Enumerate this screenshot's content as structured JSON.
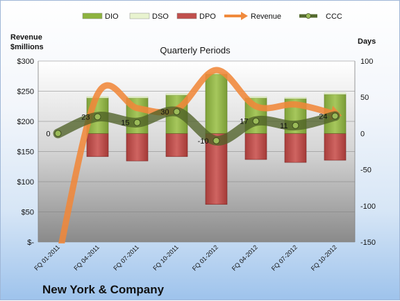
{
  "company": "New York & Company",
  "chart_data": {
    "type": "bar",
    "title": "Quarterly Periods",
    "left_axis_title_1": "Revenue",
    "left_axis_title_2": "$millions",
    "right_axis_title": "Days",
    "categories": [
      "FQ 01-2011",
      "FQ 04-2011",
      "FQ 07-2011",
      "FQ 10-2011",
      "FQ 01-2012",
      "FQ 04-2012",
      "FQ 07-2012",
      "FQ 10-2012"
    ],
    "left_ticks": [
      "$-",
      "$50",
      "$100",
      "$150",
      "$200",
      "$250",
      "$300"
    ],
    "right_ticks": [
      "-150",
      "-100",
      "-50",
      "0",
      "50",
      "100"
    ],
    "left_ylim": [
      0,
      300
    ],
    "right_ylim": [
      -150,
      100
    ],
    "legend": {
      "placement": "top",
      "entries": [
        {
          "name": "DIO",
          "color": "#8db33f"
        },
        {
          "name": "DSO",
          "color": "#e8f3cf"
        },
        {
          "name": "DPO",
          "color": "#c0504d"
        },
        {
          "name": "Revenue",
          "color": "#f08a3c"
        },
        {
          "name": "CCC",
          "color": "#556b2f"
        }
      ]
    },
    "series": [
      {
        "name": "DIO",
        "axis": "right",
        "values": [
          null,
          49,
          49,
          53,
          82,
          49,
          48,
          54
        ]
      },
      {
        "name": "DSO",
        "axis": "right",
        "values": [
          null,
          2,
          2,
          2,
          2,
          2,
          2,
          2
        ]
      },
      {
        "name": "DPO",
        "axis": "right",
        "values": [
          null,
          -32,
          -38,
          -32,
          -98,
          -36,
          -40,
          -37
        ]
      },
      {
        "name": "Revenue",
        "axis": "left",
        "values": [
          -30,
          245,
          222,
          220,
          285,
          225,
          228,
          212
        ]
      },
      {
        "name": "CCC",
        "axis": "right",
        "values": [
          0,
          23,
          15,
          30,
          -10,
          17,
          11,
          24
        ],
        "labels": [
          "0",
          "23",
          "15",
          "30",
          "-10",
          "17",
          "11",
          "24"
        ]
      }
    ]
  }
}
